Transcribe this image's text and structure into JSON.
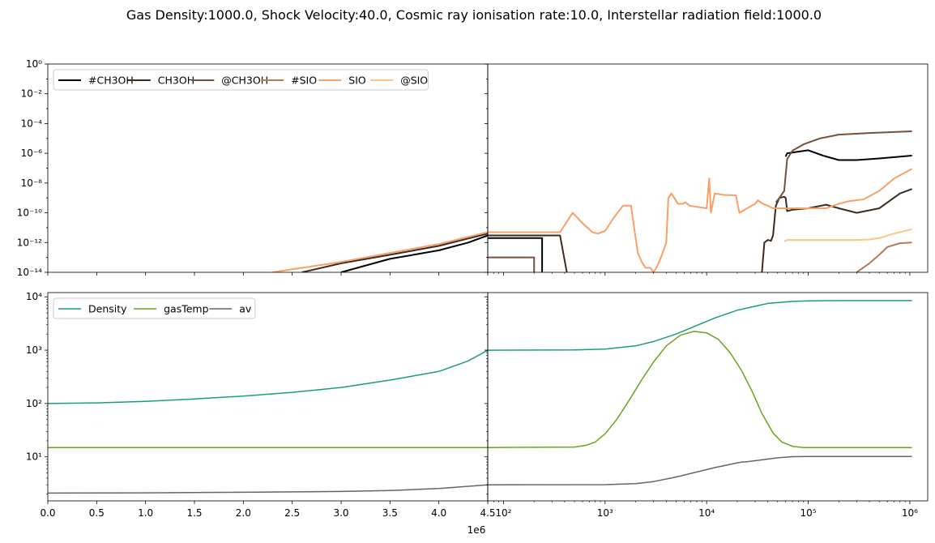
{
  "title": "Gas Density:1000.0, Shock Velocity:40.0, Cosmic ray ionisation rate:10.0, Interstellar radiation field:1000.0",
  "offset_label": "1e6",
  "chart_data": [
    {
      "type": "line",
      "panel": "top-left",
      "xscale": "linear",
      "yscale": "log",
      "xlim": [
        0,
        4500000
      ],
      "ylim": [
        1e-14,
        1
      ],
      "legend": {
        "placement": "top-left",
        "columns": 6
      },
      "series": [
        {
          "name": "#CH3OH",
          "color": "#000000",
          "x": [
            3000000,
            3500000,
            4000000,
            4300000,
            4500000
          ],
          "y": [
            1e-14,
            8e-14,
            3e-13,
            1e-12,
            3e-12
          ]
        },
        {
          "name": "CH3OH",
          "color": "#3c2b1f",
          "x": [
            2600000,
            3000000,
            3500000,
            4000000,
            4500000
          ],
          "y": [
            1e-14,
            4e-14,
            1.5e-13,
            6e-13,
            4e-12
          ]
        },
        {
          "name": "@CH3OH",
          "color": "#76503a",
          "x": [],
          "y": []
        },
        {
          "name": "#SIO",
          "color": "#b57a56",
          "x": [],
          "y": []
        },
        {
          "name": "SIO",
          "color": "#f7a068",
          "x": [
            2300000,
            2500000,
            3000000,
            3500000,
            4000000,
            4500000
          ],
          "y": [
            1e-14,
            1.6e-14,
            5e-14,
            2e-13,
            8e-13,
            5e-12
          ]
        },
        {
          "name": "@SIO",
          "color": "#ffc680",
          "x": [],
          "y": []
        }
      ],
      "yticks": [
        "10⁰",
        "10⁻²",
        "10⁻⁴",
        "10⁻⁶",
        "10⁻⁸",
        "10⁻¹⁰",
        "10⁻¹²",
        "10⁻¹⁴"
      ]
    },
    {
      "type": "line",
      "panel": "top-right",
      "xscale": "log",
      "yscale": "log",
      "xlim": [
        70,
        1500000
      ],
      "ylim": [
        1e-14,
        1
      ],
      "series": [
        {
          "name": "#CH3OH",
          "color": "#000000",
          "x": [
            70,
            240,
            240
          ],
          "y": [
            2e-12,
            2e-12,
            1e-14
          ]
        },
        {
          "name": "#CH3OH",
          "color": "#000000",
          "x": [
            60000,
            62000,
            80000,
            100000,
            140000,
            200000,
            300000,
            500000,
            1050000
          ],
          "y": [
            6e-07,
            1e-06,
            1.3e-06,
            1.6e-06,
            7e-07,
            3.5e-07,
            3.5e-07,
            4.5e-07,
            7e-07
          ]
        },
        {
          "name": "CH3OH",
          "color": "#3c2b1f",
          "x": [
            70,
            360,
            420
          ],
          "y": [
            3e-12,
            3e-12,
            1e-14
          ]
        },
        {
          "name": "CH3OH",
          "color": "#3c2b1f",
          "x": [
            35000,
            37000,
            40000,
            43000,
            45000,
            48000,
            52000,
            58000,
            60000,
            62000,
            70000,
            100000,
            150000,
            200000,
            300000,
            500000,
            800000,
            1050000
          ],
          "y": [
            1e-14,
            1e-12,
            1.5e-12,
            1.3e-12,
            3e-12,
            3e-10,
            1e-09,
            1.2e-09,
            1e-09,
            1.3e-10,
            1.6e-10,
            2e-10,
            3.5e-10,
            2e-10,
            1e-10,
            2e-10,
            2e-09,
            4e-09
          ]
        },
        {
          "name": "@CH3OH",
          "color": "#76503a",
          "x": [
            70,
            200,
            200
          ],
          "y": [
            1e-13,
            1e-13,
            1e-14
          ]
        },
        {
          "name": "@CH3OH",
          "color": "#76503a",
          "x": [
            48000,
            52000,
            58000,
            62000,
            70000,
            90000,
            130000,
            200000,
            400000,
            1050000
          ],
          "y": [
            5e-10,
            1e-09,
            3e-09,
            4e-07,
            1.5e-06,
            4e-06,
            1e-05,
            1.8e-05,
            2.3e-05,
            3e-05
          ]
        },
        {
          "name": "#SIO",
          "color": "#b57a56",
          "x": [
            300000,
            400000,
            500000,
            600000,
            800000,
            1050000
          ],
          "y": [
            1e-14,
            4e-14,
            1.5e-13,
            5e-13,
            9e-13,
            1e-12
          ]
        },
        {
          "name": "SIO",
          "color": "#f7a068",
          "x": [
            70,
            120,
            360,
            480,
            600,
            750,
            850,
            1000,
            1200,
            1500,
            1800,
            2100,
            2300,
            2500,
            2800,
            3000,
            3300,
            3600,
            4000,
            4200,
            4500,
            4800,
            5200,
            5800,
            6200,
            6800,
            8000,
            10000,
            10600,
            11000,
            12000,
            15000,
            19500,
            20000,
            21000,
            25000,
            30000,
            32000,
            34000,
            36000,
            40000,
            45000,
            50000,
            55000,
            60000,
            62000,
            70000,
            90000,
            150000,
            200000,
            250000,
            350000,
            500000,
            700000,
            1050000
          ],
          "y": [
            5e-12,
            5e-12,
            5e-12,
            1e-10,
            2e-11,
            5e-12,
            4e-12,
            6e-12,
            4e-11,
            3e-10,
            3e-10,
            2e-13,
            5e-14,
            2e-14,
            2e-14,
            1e-14,
            3e-14,
            1.3e-13,
            1e-12,
            1e-09,
            2e-09,
            1e-09,
            4e-10,
            4e-10,
            5e-10,
            3e-10,
            2.5e-10,
            2e-10,
            2e-08,
            1e-10,
            2e-09,
            1.6e-09,
            1.5e-09,
            5e-10,
            1e-10,
            2e-10,
            4e-10,
            7e-10,
            5e-10,
            4e-10,
            3e-10,
            2e-10,
            2e-10,
            2e-10,
            2e-10,
            2e-10,
            2e-10,
            2e-10,
            2e-10,
            4e-10,
            6e-10,
            8e-10,
            3e-09,
            2e-08,
            9e-08
          ]
        },
        {
          "name": "@SIO",
          "color": "#ffc680",
          "x": [
            58000,
            62000,
            70000,
            100000,
            200000,
            300000,
            400000,
            500000,
            700000,
            1050000
          ],
          "y": [
            1.2e-12,
            1.5e-12,
            1.5e-12,
            1.5e-12,
            1.5e-12,
            1.5e-12,
            1.6e-12,
            2e-12,
            4e-12,
            8e-12
          ]
        }
      ]
    },
    {
      "type": "line",
      "panel": "bottom-left",
      "xscale": "linear",
      "yscale": "log",
      "xlim": [
        0,
        4500000
      ],
      "ylim": [
        1.5,
        12000
      ],
      "legend": {
        "placement": "top-left",
        "columns": 3
      },
      "series": [
        {
          "name": "Density",
          "color": "#1b9e77",
          "x": [
            0,
            500000,
            1000000,
            1500000,
            2000000,
            2500000,
            3000000,
            3500000,
            4000000,
            4300000,
            4500000
          ],
          "y": [
            100,
            103,
            110,
            122,
            138,
            162,
            200,
            275,
            400,
            630,
            1000
          ]
        },
        {
          "name": "gasTemp",
          "color": "#66a61e",
          "x": [
            0,
            4500000
          ],
          "y": [
            15,
            15
          ]
        },
        {
          "name": "av",
          "color": "#666666",
          "x": [
            0,
            1000000,
            2000000,
            3000000,
            3500000,
            4000000,
            4500000
          ],
          "y": [
            2.1,
            2.12,
            2.17,
            2.25,
            2.35,
            2.55,
            3.0
          ]
        }
      ],
      "xticks": [
        "0.0",
        "0.5",
        "1.0",
        "1.5",
        "2.0",
        "2.5",
        "3.0",
        "3.5",
        "4.0",
        "4.5"
      ],
      "yticks": [
        "10⁴",
        "10³",
        "10²",
        "10¹"
      ]
    },
    {
      "type": "line",
      "panel": "bottom-right",
      "xscale": "log",
      "yscale": "log",
      "xlim": [
        70,
        1500000
      ],
      "ylim": [
        1.5,
        12000
      ],
      "series": [
        {
          "name": "Density",
          "color": "#1b9e77",
          "x": [
            70,
            500,
            1000,
            2000,
            3000,
            5000,
            8000,
            12000,
            20000,
            40000,
            70000,
            100000,
            200000,
            500000,
            1050000
          ],
          "y": [
            1000,
            1010,
            1050,
            1200,
            1450,
            2000,
            2900,
            4000,
            5600,
            7500,
            8200,
            8400,
            8500,
            8500,
            8500
          ]
        },
        {
          "name": "gasTemp",
          "color": "#66a61e",
          "x": [
            70,
            500,
            650,
            800,
            1000,
            1300,
            1700,
            2300,
            3000,
            4000,
            5500,
            7500,
            10000,
            13000,
            17000,
            22000,
            28000,
            35000,
            45000,
            55000,
            70000,
            90000,
            200000,
            1050000
          ],
          "y": [
            15,
            15.3,
            16.5,
            19,
            27,
            50,
            110,
            280,
            600,
            1200,
            1900,
            2250,
            2100,
            1600,
            900,
            420,
            170,
            65,
            28,
            19,
            15.8,
            15,
            15,
            15
          ]
        },
        {
          "name": "av",
          "color": "#666666",
          "x": [
            70,
            1000,
            2000,
            3000,
            5000,
            8000,
            12000,
            18000,
            22000,
            25000,
            35000,
            50000,
            70000,
            100000,
            200000,
            1050000
          ],
          "y": [
            3.0,
            3.02,
            3.15,
            3.45,
            4.2,
            5.2,
            6.3,
            7.4,
            8.0,
            8.1,
            8.8,
            9.6,
            10.1,
            10.2,
            10.2,
            10.2
          ]
        }
      ],
      "xticks": [
        "10²",
        "10³",
        "10⁴",
        "10⁵",
        "10⁶"
      ]
    }
  ]
}
